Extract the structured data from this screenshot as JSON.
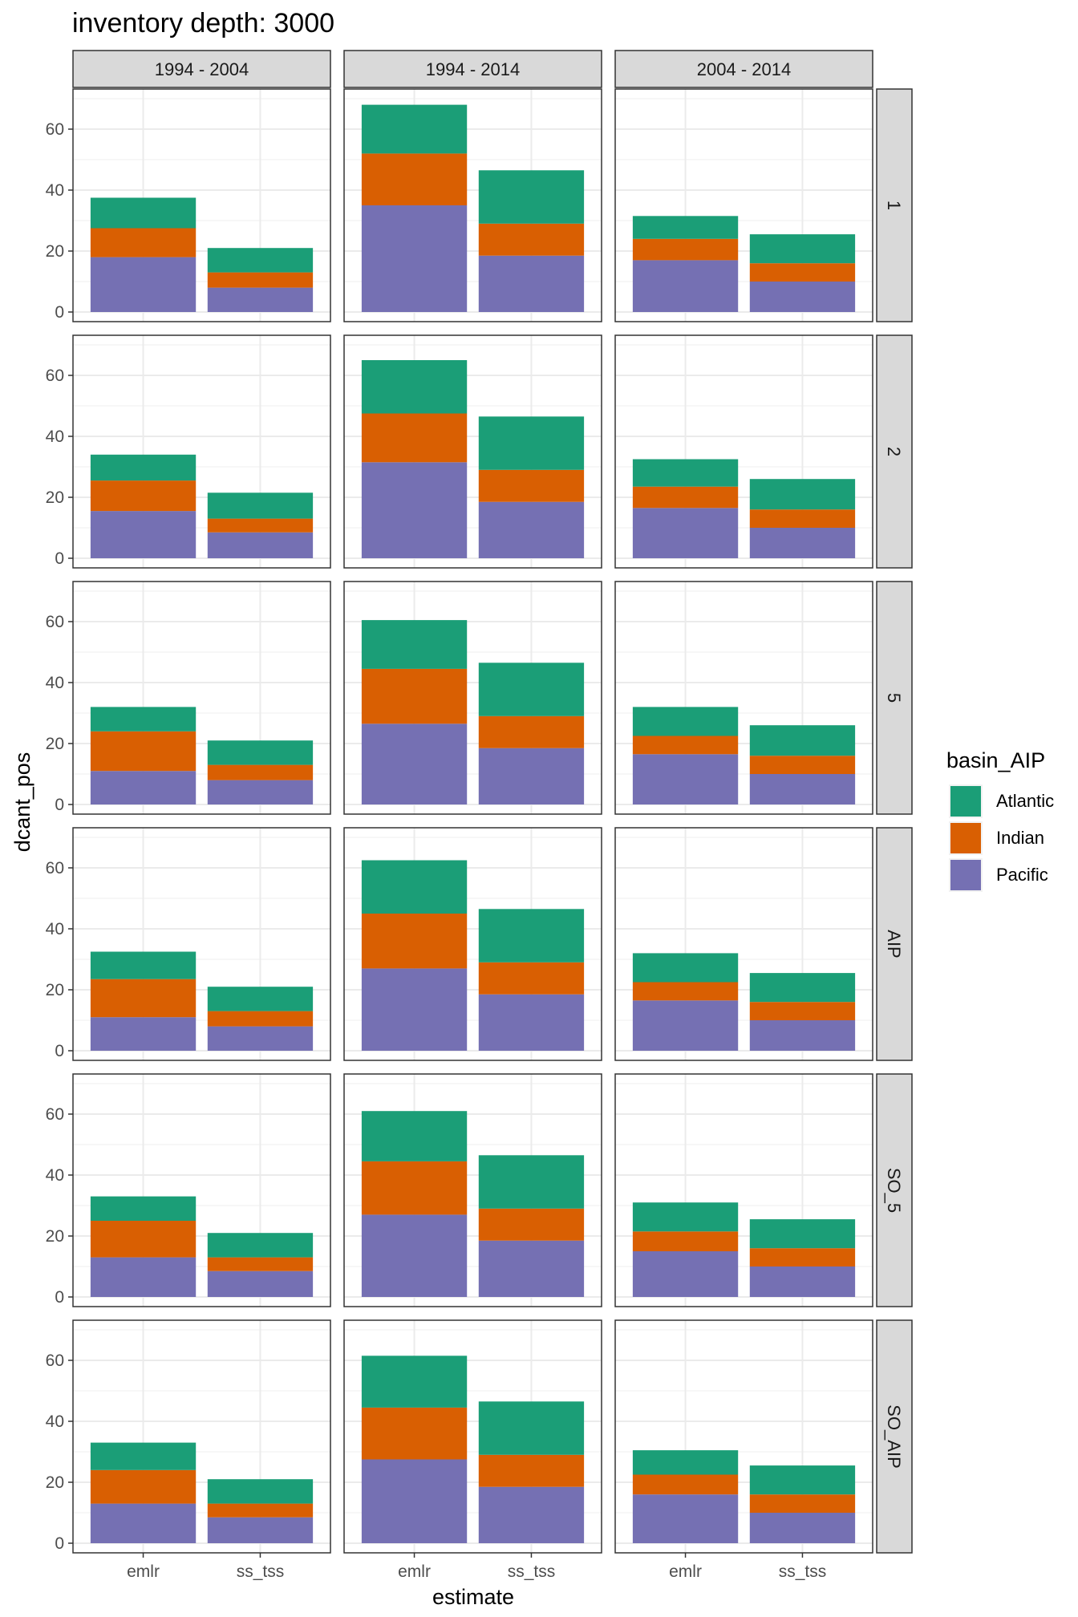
{
  "chart_data": {
    "type": "bar",
    "stacked": true,
    "title": "inventory depth: 3000",
    "xlabel": "estimate",
    "ylabel": "dcant_pos",
    "ylim": [
      0,
      70
    ],
    "y_ticks": [
      0,
      20,
      40,
      60
    ],
    "grid": true,
    "legend": {
      "title": "basin_AIP",
      "position": "right",
      "entries": [
        "Atlantic",
        "Indian",
        "Pacific"
      ]
    },
    "colors": {
      "Atlantic": "#1b9e77",
      "Indian": "#d95f02",
      "Pacific": "#7570b3"
    },
    "categories": [
      "emlr",
      "ss_tss"
    ],
    "columns": [
      "1994 - 2004",
      "1994 - 2014",
      "2004 - 2014"
    ],
    "rows": [
      "1",
      "2",
      "5",
      "AIP",
      "SO_5",
      "SO_AIP"
    ],
    "panels": [
      {
        "row": "1",
        "col": "1994 - 2004",
        "bars": [
          {
            "category": "emlr",
            "Pacific": 18,
            "Indian": 9.5,
            "Atlantic": 10
          },
          {
            "category": "ss_tss",
            "Pacific": 8,
            "Indian": 5,
            "Atlantic": 8
          }
        ]
      },
      {
        "row": "1",
        "col": "1994 - 2014",
        "bars": [
          {
            "category": "emlr",
            "Pacific": 35,
            "Indian": 17,
            "Atlantic": 16
          },
          {
            "category": "ss_tss",
            "Pacific": 18.5,
            "Indian": 10.5,
            "Atlantic": 17.5
          }
        ]
      },
      {
        "row": "1",
        "col": "2004 - 2014",
        "bars": [
          {
            "category": "emlr",
            "Pacific": 17,
            "Indian": 7,
            "Atlantic": 7.5
          },
          {
            "category": "ss_tss",
            "Pacific": 10,
            "Indian": 6,
            "Atlantic": 9.5
          }
        ]
      },
      {
        "row": "2",
        "col": "1994 - 2004",
        "bars": [
          {
            "category": "emlr",
            "Pacific": 15.5,
            "Indian": 10,
            "Atlantic": 8.5
          },
          {
            "category": "ss_tss",
            "Pacific": 8.5,
            "Indian": 4.5,
            "Atlantic": 8.5
          }
        ]
      },
      {
        "row": "2",
        "col": "1994 - 2014",
        "bars": [
          {
            "category": "emlr",
            "Pacific": 31.5,
            "Indian": 16,
            "Atlantic": 17.5
          },
          {
            "category": "ss_tss",
            "Pacific": 18.5,
            "Indian": 10.5,
            "Atlantic": 17.5
          }
        ]
      },
      {
        "row": "2",
        "col": "2004 - 2014",
        "bars": [
          {
            "category": "emlr",
            "Pacific": 16.5,
            "Indian": 7,
            "Atlantic": 9
          },
          {
            "category": "ss_tss",
            "Pacific": 10,
            "Indian": 6,
            "Atlantic": 10
          }
        ]
      },
      {
        "row": "5",
        "col": "1994 - 2004",
        "bars": [
          {
            "category": "emlr",
            "Pacific": 11,
            "Indian": 13,
            "Atlantic": 8
          },
          {
            "category": "ss_tss",
            "Pacific": 8,
            "Indian": 5,
            "Atlantic": 8
          }
        ]
      },
      {
        "row": "5",
        "col": "1994 - 2014",
        "bars": [
          {
            "category": "emlr",
            "Pacific": 26.5,
            "Indian": 18,
            "Atlantic": 16
          },
          {
            "category": "ss_tss",
            "Pacific": 18.5,
            "Indian": 10.5,
            "Atlantic": 17.5
          }
        ]
      },
      {
        "row": "5",
        "col": "2004 - 2014",
        "bars": [
          {
            "category": "emlr",
            "Pacific": 16.5,
            "Indian": 6,
            "Atlantic": 9.5
          },
          {
            "category": "ss_tss",
            "Pacific": 10,
            "Indian": 6,
            "Atlantic": 10
          }
        ]
      },
      {
        "row": "AIP",
        "col": "1994 - 2004",
        "bars": [
          {
            "category": "emlr",
            "Pacific": 11,
            "Indian": 12.5,
            "Atlantic": 9
          },
          {
            "category": "ss_tss",
            "Pacific": 8,
            "Indian": 5,
            "Atlantic": 8
          }
        ]
      },
      {
        "row": "AIP",
        "col": "1994 - 2014",
        "bars": [
          {
            "category": "emlr",
            "Pacific": 27,
            "Indian": 18,
            "Atlantic": 17.5
          },
          {
            "category": "ss_tss",
            "Pacific": 18.5,
            "Indian": 10.5,
            "Atlantic": 17.5
          }
        ]
      },
      {
        "row": "AIP",
        "col": "2004 - 2014",
        "bars": [
          {
            "category": "emlr",
            "Pacific": 16.5,
            "Indian": 6,
            "Atlantic": 9.5
          },
          {
            "category": "ss_tss",
            "Pacific": 10,
            "Indian": 6,
            "Atlantic": 9.5
          }
        ]
      },
      {
        "row": "SO_5",
        "col": "1994 - 2004",
        "bars": [
          {
            "category": "emlr",
            "Pacific": 13,
            "Indian": 12,
            "Atlantic": 8
          },
          {
            "category": "ss_tss",
            "Pacific": 8.5,
            "Indian": 4.5,
            "Atlantic": 8
          }
        ]
      },
      {
        "row": "SO_5",
        "col": "1994 - 2014",
        "bars": [
          {
            "category": "emlr",
            "Pacific": 27,
            "Indian": 17.5,
            "Atlantic": 16.5
          },
          {
            "category": "ss_tss",
            "Pacific": 18.5,
            "Indian": 10.5,
            "Atlantic": 17.5
          }
        ]
      },
      {
        "row": "SO_5",
        "col": "2004 - 2014",
        "bars": [
          {
            "category": "emlr",
            "Pacific": 15,
            "Indian": 6.5,
            "Atlantic": 9.5
          },
          {
            "category": "ss_tss",
            "Pacific": 10,
            "Indian": 6,
            "Atlantic": 9.5
          }
        ]
      },
      {
        "row": "SO_AIP",
        "col": "1994 - 2004",
        "bars": [
          {
            "category": "emlr",
            "Pacific": 13,
            "Indian": 11,
            "Atlantic": 9
          },
          {
            "category": "ss_tss",
            "Pacific": 8.5,
            "Indian": 4.5,
            "Atlantic": 8
          }
        ]
      },
      {
        "row": "SO_AIP",
        "col": "1994 - 2014",
        "bars": [
          {
            "category": "emlr",
            "Pacific": 27.5,
            "Indian": 17,
            "Atlantic": 17
          },
          {
            "category": "ss_tss",
            "Pacific": 18.5,
            "Indian": 10.5,
            "Atlantic": 17.5
          }
        ]
      },
      {
        "row": "SO_AIP",
        "col": "2004 - 2014",
        "bars": [
          {
            "category": "emlr",
            "Pacific": 16,
            "Indian": 6.5,
            "Atlantic": 8
          },
          {
            "category": "ss_tss",
            "Pacific": 10,
            "Indian": 6,
            "Atlantic": 9.5
          }
        ]
      }
    ]
  }
}
